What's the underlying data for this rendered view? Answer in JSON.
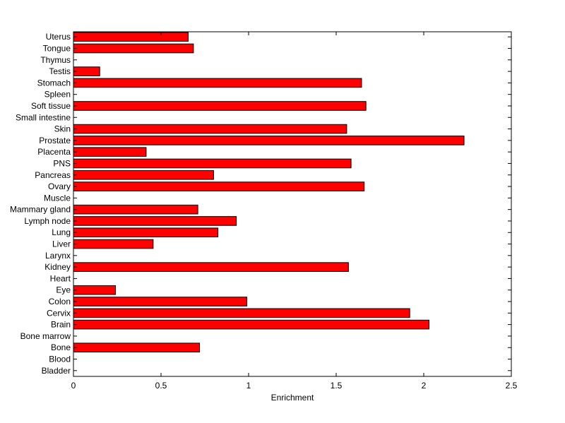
{
  "chart_data": {
    "type": "bar",
    "orientation": "horizontal",
    "categories": [
      "Bladder",
      "Blood",
      "Bone",
      "Bone marrow",
      "Brain",
      "Cervix",
      "Colon",
      "Eye",
      "Heart",
      "Kidney",
      "Larynx",
      "Liver",
      "Lung",
      "Lymph node",
      "Mammary gland",
      "Muscle",
      "Ovary",
      "Pancreas",
      "PNS",
      "Placenta",
      "Prostate",
      "Skin",
      "Small intestine",
      "Soft tissue",
      "Spleen",
      "Stomach",
      "Testis",
      "Thymus",
      "Tongue",
      "Uterus"
    ],
    "values": [
      0,
      0,
      0.72,
      0,
      2.03,
      1.92,
      0.99,
      0.24,
      0,
      1.57,
      0,
      0.455,
      0.825,
      0.93,
      0.71,
      0,
      1.66,
      0.8,
      1.585,
      0.415,
      2.23,
      1.56,
      0,
      1.67,
      0,
      1.645,
      0.15,
      0,
      0.685,
      0.655
    ],
    "xlabel": "Enrichment",
    "ylabel": "",
    "title": "",
    "xlim": [
      0,
      2.5
    ],
    "xticks": [
      0,
      0.5,
      1,
      1.5,
      2,
      2.5
    ],
    "xtick_labels": [
      "0",
      "0.5",
      "1",
      "1.5",
      "2",
      "2.5"
    ],
    "bar_color": "#ff0000",
    "edge_color": "#000000",
    "grid": false,
    "legend": "none"
  }
}
